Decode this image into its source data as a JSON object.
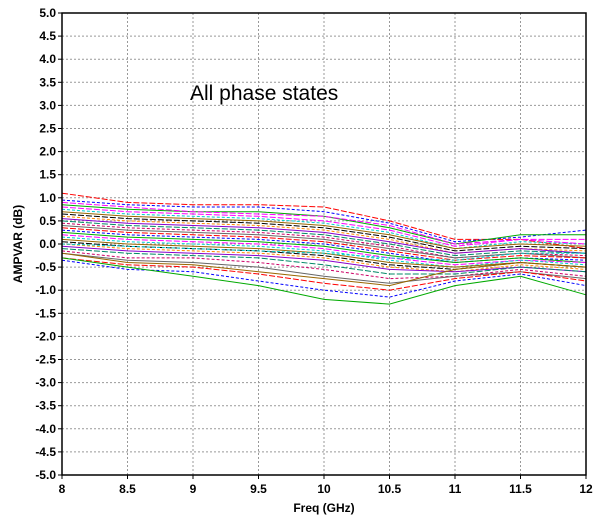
{
  "chart_data": {
    "type": "line",
    "title": "",
    "annotation": "All phase states",
    "xlabel": "Freq (GHz)",
    "ylabel": "AMPVAR (dB)",
    "xlim": [
      8,
      12
    ],
    "ylim": [
      -5,
      5
    ],
    "x_ticks": [
      8,
      8.5,
      9,
      9.5,
      10,
      10.5,
      11,
      11.5,
      12
    ],
    "x_tick_labels": [
      "8",
      "8.5",
      "9",
      "9.5",
      "10",
      "10.5",
      "11",
      "11.5",
      "12"
    ],
    "y_ticks": [
      5,
      4.5,
      4,
      3.5,
      3,
      2.5,
      2,
      1.5,
      1,
      0.5,
      0,
      -0.5,
      -1,
      -1.5,
      -2,
      -2.5,
      -3,
      -3.5,
      -4,
      -4.5,
      -5
    ],
    "y_tick_labels": [
      "5.0",
      "4.5",
      "4.0",
      "3.5",
      "3.0",
      "2.5",
      "2.0",
      "1.5",
      "1.0",
      "0.5",
      "0.0",
      "-0.5",
      "-1.0",
      "-1.5",
      "-2.0",
      "-2.5",
      "-3.0",
      "-3.5",
      "-4.0",
      "-4.5",
      "-5.0"
    ],
    "grid": true,
    "series_colors": [
      "#ff0000",
      "#0000ff",
      "#00aa00",
      "#ff00ff",
      "#00cccc",
      "#996600",
      "#000000",
      "#ff8800",
      "#8800cc",
      "#008866",
      "#cc0066",
      "#666666"
    ],
    "x": [
      8,
      8.5,
      9,
      9.5,
      10,
      10.5,
      11,
      11.5,
      12
    ],
    "series": [
      {
        "values": [
          1.1,
          0.9,
          0.85,
          0.85,
          0.8,
          0.5,
          0.1,
          0.1,
          -0.1
        ]
      },
      {
        "values": [
          0.95,
          0.85,
          0.8,
          0.8,
          0.7,
          0.45,
          0.05,
          0.15,
          0.3
        ]
      },
      {
        "values": [
          0.85,
          0.75,
          0.7,
          0.7,
          0.6,
          0.35,
          0.0,
          0.2,
          0.2
        ]
      },
      {
        "values": [
          0.8,
          0.7,
          0.65,
          0.6,
          0.5,
          0.3,
          -0.05,
          0.1,
          0.1
        ]
      },
      {
        "values": [
          0.75,
          0.65,
          0.6,
          0.55,
          0.45,
          0.25,
          -0.1,
          0.05,
          0.0
        ]
      },
      {
        "values": [
          0.7,
          0.6,
          0.55,
          0.5,
          0.4,
          0.2,
          -0.1,
          0.0,
          -0.05
        ]
      },
      {
        "values": [
          0.65,
          0.55,
          0.5,
          0.45,
          0.35,
          0.15,
          -0.15,
          -0.05,
          -0.1
        ]
      },
      {
        "values": [
          0.6,
          0.5,
          0.45,
          0.4,
          0.3,
          0.1,
          -0.2,
          -0.1,
          -0.15
        ]
      },
      {
        "values": [
          0.55,
          0.45,
          0.4,
          0.35,
          0.25,
          0.05,
          -0.2,
          -0.1,
          -0.2
        ]
      },
      {
        "values": [
          0.5,
          0.4,
          0.35,
          0.3,
          0.2,
          0.0,
          -0.25,
          -0.15,
          -0.2
        ]
      },
      {
        "values": [
          0.45,
          0.35,
          0.3,
          0.25,
          0.15,
          -0.05,
          -0.3,
          -0.2,
          -0.25
        ]
      },
      {
        "values": [
          0.4,
          0.3,
          0.25,
          0.2,
          0.1,
          -0.1,
          -0.3,
          -0.2,
          -0.3
        ]
      },
      {
        "values": [
          0.35,
          0.25,
          0.2,
          0.15,
          0.05,
          -0.15,
          -0.35,
          -0.25,
          -0.3
        ]
      },
      {
        "values": [
          0.3,
          0.2,
          0.15,
          0.1,
          0.0,
          -0.2,
          -0.4,
          -0.3,
          -0.35
        ]
      },
      {
        "values": [
          0.25,
          0.15,
          0.1,
          0.05,
          -0.05,
          -0.25,
          -0.4,
          -0.3,
          -0.4
        ]
      },
      {
        "values": [
          0.2,
          0.1,
          0.05,
          0.0,
          -0.1,
          -0.3,
          -0.45,
          -0.35,
          -0.4
        ]
      },
      {
        "values": [
          0.15,
          0.05,
          0.0,
          -0.05,
          -0.15,
          -0.35,
          -0.5,
          -0.35,
          -0.45
        ]
      },
      {
        "values": [
          0.1,
          0.0,
          -0.05,
          -0.1,
          -0.2,
          -0.4,
          -0.5,
          -0.4,
          -0.5
        ]
      },
      {
        "values": [
          0.05,
          -0.05,
          -0.1,
          -0.15,
          -0.25,
          -0.45,
          -0.55,
          -0.4,
          -0.5
        ]
      },
      {
        "values": [
          0.0,
          -0.1,
          -0.15,
          -0.2,
          -0.3,
          -0.5,
          -0.6,
          -0.45,
          -0.55
        ]
      },
      {
        "values": [
          -0.05,
          -0.15,
          -0.2,
          -0.25,
          -0.35,
          -0.55,
          -0.6,
          -0.5,
          -0.6
        ]
      },
      {
        "values": [
          -0.1,
          -0.2,
          -0.25,
          -0.3,
          -0.45,
          -0.65,
          -0.65,
          -0.5,
          -0.6
        ]
      },
      {
        "values": [
          -0.15,
          -0.3,
          -0.3,
          -0.4,
          -0.55,
          -0.75,
          -0.7,
          -0.55,
          -0.7
        ]
      },
      {
        "values": [
          -0.2,
          -0.35,
          -0.4,
          -0.5,
          -0.7,
          -0.85,
          -0.7,
          -0.6,
          -0.75
        ]
      },
      {
        "values": [
          -0.3,
          -0.45,
          -0.5,
          -0.65,
          -0.85,
          -1.0,
          -0.75,
          -0.6,
          -0.8
        ]
      },
      {
        "values": [
          -0.35,
          -0.55,
          -0.6,
          -0.8,
          -1.0,
          -1.15,
          -0.8,
          -0.65,
          -0.9
        ]
      },
      {
        "values": [
          -0.3,
          -0.5,
          -0.7,
          -0.9,
          -1.2,
          -1.3,
          -0.9,
          -0.7,
          -1.1
        ]
      },
      {
        "values": [
          0.9,
          0.8,
          0.7,
          0.65,
          0.6,
          0.4,
          0.0,
          0.1,
          0.0
        ]
      },
      {
        "values": [
          0.0,
          -0.05,
          -0.1,
          -0.15,
          -0.2,
          -0.3,
          -0.35,
          -0.2,
          -0.2
        ]
      },
      {
        "values": [
          -0.2,
          -0.4,
          -0.45,
          -0.6,
          -0.75,
          -0.9,
          -0.55,
          -0.4,
          -0.5
        ]
      }
    ]
  }
}
